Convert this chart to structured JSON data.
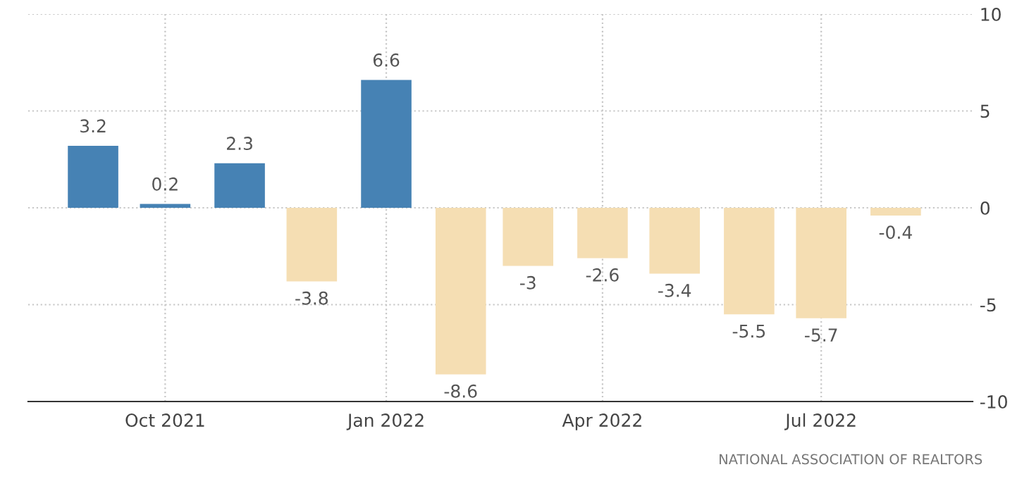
{
  "chart_data": {
    "type": "bar",
    "x": [
      "2021-09",
      "2021-10",
      "2021-11",
      "2021-12",
      "2022-01",
      "2022-02",
      "2022-03",
      "2022-04",
      "2022-05",
      "2022-06",
      "2022-07",
      "2022-08"
    ],
    "values": [
      3.2,
      0.2,
      2.3,
      -3.8,
      6.6,
      -8.6,
      -3,
      -2.6,
      -3.4,
      -5.5,
      -5.7,
      -0.4
    ],
    "colors": [
      "#4682b4",
      "#4682b4",
      "#4682b4",
      "#f5deb3",
      "#4682b4",
      "#f5deb3",
      "#f5deb3",
      "#f5deb3",
      "#f5deb3",
      "#f5deb3",
      "#f5deb3",
      "#f5deb3"
    ],
    "data_labels": true,
    "xlim": [
      "2021-08-05",
      "2022-09-02"
    ],
    "xticks": [
      {
        "value": "2021-10-01",
        "label": "Oct 2021"
      },
      {
        "value": "2022-01-01",
        "label": "Jan 2022"
      },
      {
        "value": "2022-04-01",
        "label": "Apr 2022"
      },
      {
        "value": "2022-07-01",
        "label": "Jul 2022"
      }
    ],
    "ylim": [
      -10,
      10
    ],
    "yticks": [
      -10,
      -5,
      0,
      5,
      10
    ],
    "grid": true,
    "annotations": [
      "NATIONAL ASSOCIATION OF REALTORS"
    ]
  }
}
